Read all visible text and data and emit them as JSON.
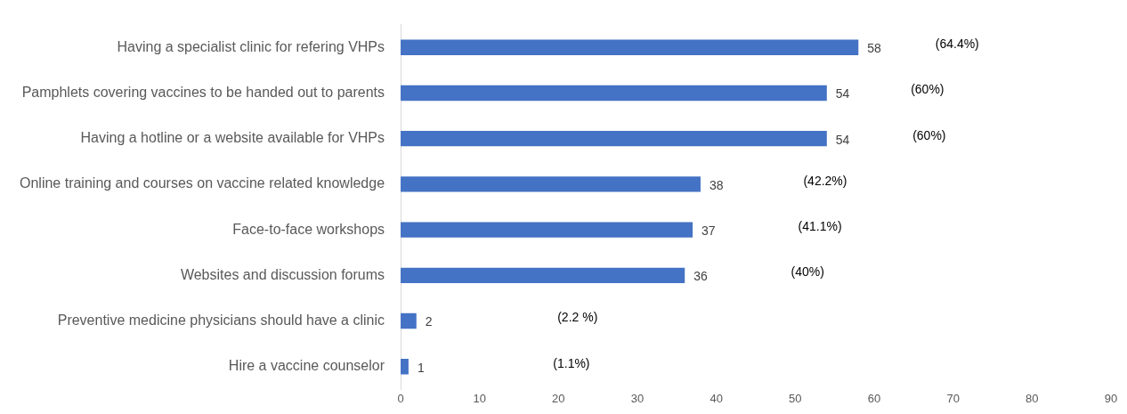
{
  "chart_data": {
    "type": "bar",
    "orientation": "horizontal",
    "categories": [
      "Having a specialist clinic for refering VHPs",
      "Pamphlets covering vaccines to be handed out to parents",
      "Having a hotline or a website available for VHPs",
      "Online training and courses on vaccine related knowledge",
      "Face-to-face workshops",
      "Websites and discussion forums",
      "Preventive medicine physicians should have a clinic",
      "Hire a vaccine counselor"
    ],
    "values": [
      58,
      54,
      54,
      38,
      37,
      36,
      2,
      1
    ],
    "color": "#4472c4",
    "data_labels": true,
    "xlim": [
      0,
      90
    ],
    "xticks": [
      0,
      10,
      20,
      30,
      40,
      50,
      60,
      70,
      80,
      90
    ],
    "grid": false,
    "legend": false,
    "annotations": [
      "(64.4%)",
      "(60%)",
      "(60%)",
      "(42.2%)",
      "(41.1%)",
      "(40%)",
      "(2.2 %)",
      "(1.1%)"
    ]
  }
}
